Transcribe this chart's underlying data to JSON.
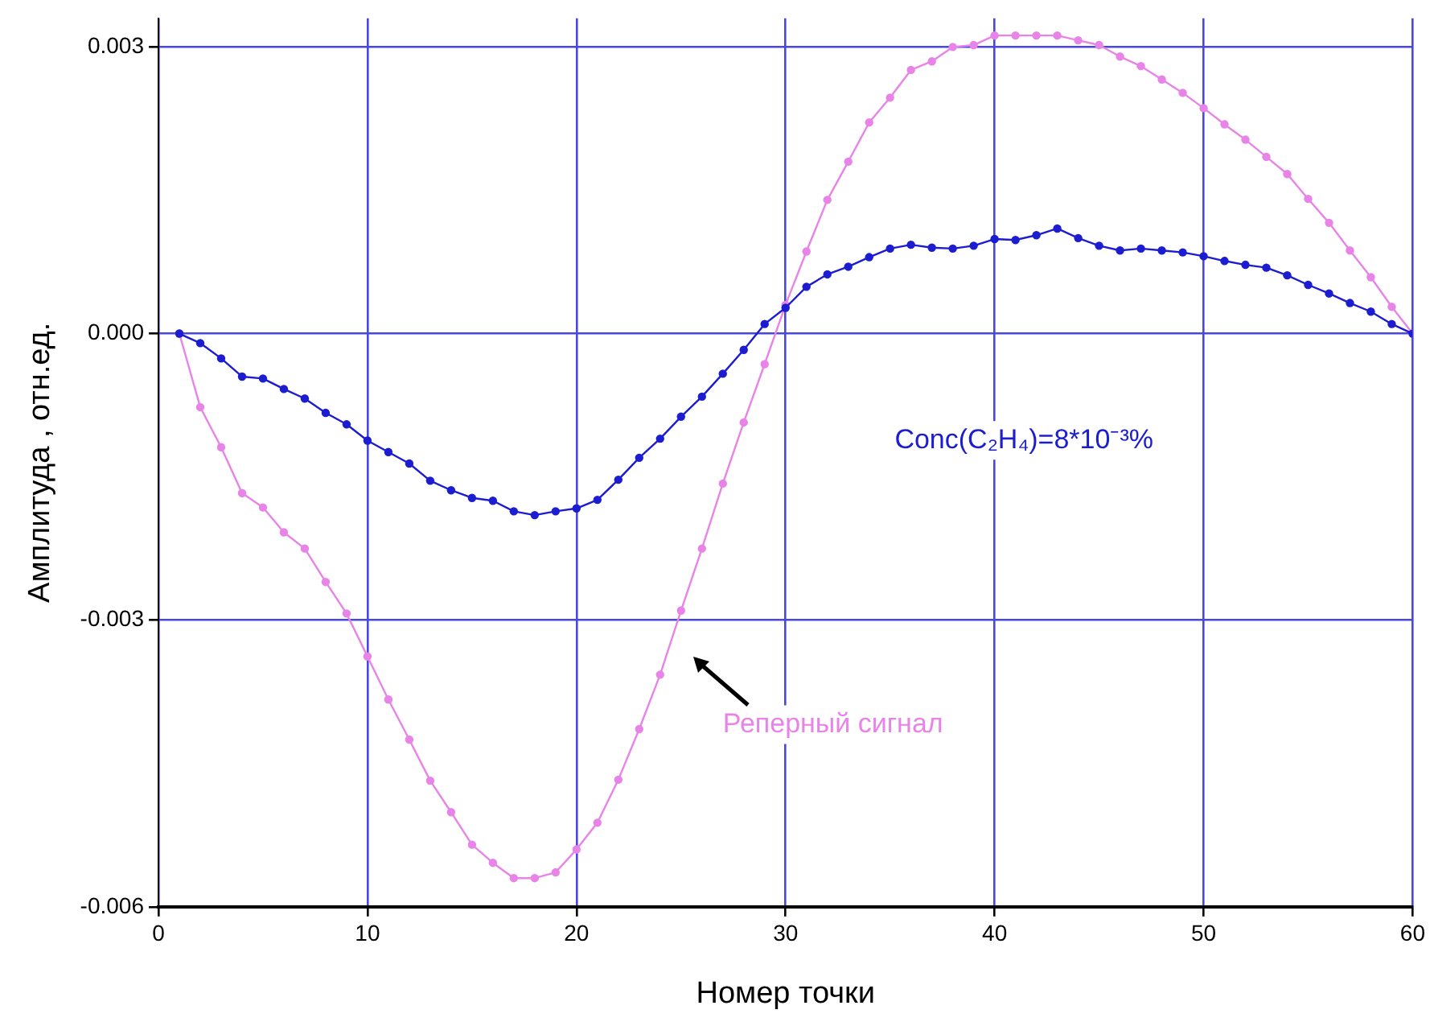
{
  "chart_data": {
    "type": "line",
    "xlabel": "Номер точки",
    "ylabel": "Амплитуда , отн.ед.",
    "x": [
      1,
      2,
      3,
      4,
      5,
      6,
      7,
      8,
      9,
      10,
      11,
      12,
      13,
      14,
      15,
      16,
      17,
      18,
      19,
      20,
      21,
      22,
      23,
      24,
      25,
      26,
      27,
      28,
      29,
      30,
      31,
      32,
      33,
      34,
      35,
      36,
      37,
      38,
      39,
      40,
      41,
      42,
      43,
      44,
      45,
      46,
      47,
      48,
      49,
      50,
      51,
      52,
      53,
      54,
      55,
      56,
      57,
      58,
      59,
      60
    ],
    "series": [
      {
        "color": "#1c1cd0",
        "values": [
          0,
          -0.0001,
          -0.00026,
          -0.00045,
          -0.00047,
          -0.00058,
          -0.00068,
          -0.00083,
          -0.00095,
          -0.00112,
          -0.00124,
          -0.00136,
          -0.00154,
          -0.00164,
          -0.00172,
          -0.00175,
          -0.00186,
          -0.0019,
          -0.00186,
          -0.00183,
          -0.00174,
          -0.00153,
          -0.0013,
          -0.0011,
          -0.00087,
          -0.00066,
          -0.00042,
          -0.00017,
          0.0001,
          0.00027,
          0.00049,
          0.00062,
          0.0007,
          0.0008,
          0.00089,
          0.00093,
          0.0009,
          0.00089,
          0.00092,
          0.00099,
          0.00098,
          0.00103,
          0.0011,
          0.001,
          0.00092,
          0.00087,
          0.00089,
          0.00087,
          0.00085,
          0.00081,
          0.00076,
          0.00072,
          0.00069,
          0.00061,
          0.00051,
          0.00042,
          0.00032,
          0.00023,
          0.0001,
          0
        ]
      },
      {
        "color": "#e884e8",
        "values": [
          0,
          -0.00077,
          -0.00119,
          -0.00167,
          -0.00182,
          -0.00208,
          -0.00225,
          -0.0026,
          -0.00293,
          -0.00338,
          -0.00383,
          -0.00425,
          -0.00468,
          -0.00501,
          -0.00535,
          -0.00554,
          -0.0057,
          -0.0057,
          -0.00564,
          -0.0054,
          -0.00512,
          -0.00467,
          -0.00414,
          -0.00357,
          -0.0029,
          -0.00225,
          -0.00157,
          -0.00093,
          -0.00032,
          0.0003,
          0.00086,
          0.0014,
          0.0018,
          0.00221,
          0.00247,
          0.00276,
          0.00285,
          0.003,
          0.00302,
          0.00312,
          0.00312,
          0.00312,
          0.00312,
          0.00307,
          0.00302,
          0.0029,
          0.0028,
          0.00266,
          0.00252,
          0.00236,
          0.00219,
          0.00203,
          0.00185,
          0.00167,
          0.00141,
          0.00116,
          0.00087,
          0.00059,
          0.00028,
          0
        ]
      }
    ],
    "xlim": [
      0,
      60
    ],
    "xticks": [
      0,
      10,
      20,
      30,
      40,
      50,
      60
    ],
    "ylim": [
      -0.006,
      0.0033
    ],
    "yticks": [
      {
        "value": -0.006,
        "label": "-0.006"
      },
      {
        "value": -0.003,
        "label": "-0.003"
      },
      {
        "value": 0,
        "label": "0.000"
      },
      {
        "value": 0.003,
        "label": "0.003"
      }
    ],
    "grid": true,
    "legend": false,
    "marker": "circle",
    "line_style": "solid",
    "annotations": [
      "Conc(C₂H₄)=8*10⁻³%",
      "Реперный сигнал"
    ]
  }
}
